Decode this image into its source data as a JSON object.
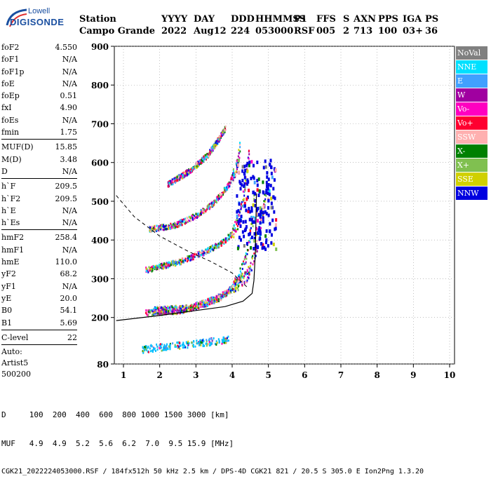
{
  "logo": {
    "line1": "Lowell",
    "line2": "DIGISONDE"
  },
  "header": {
    "row1": [
      "Station",
      "YYYY",
      "DAY",
      "DDD",
      "HHMMSS",
      "P1",
      "FFS",
      "S",
      "AXN",
      "PPS",
      "IGA",
      "PS"
    ],
    "row2": [
      "Campo Grande",
      "2022",
      "Aug12",
      "224",
      "053000",
      "RSF",
      "005",
      "2",
      "713",
      "100",
      "03+",
      "36"
    ]
  },
  "params": {
    "group1": [
      [
        "foF2",
        "4.550"
      ],
      [
        "foF1",
        "N/A"
      ],
      [
        "foF1p",
        "N/A"
      ],
      [
        "foE",
        "N/A"
      ],
      [
        "foEp",
        "0.51"
      ],
      [
        "fxI",
        "4.90"
      ],
      [
        "foEs",
        "N/A"
      ],
      [
        "fmin",
        "1.75"
      ]
    ],
    "group2": [
      [
        "MUF(D)",
        "15.85"
      ],
      [
        "M(D)",
        "3.48"
      ],
      [
        "D",
        "N/A"
      ]
    ],
    "group3": [
      [
        "h`F",
        "209.5"
      ],
      [
        "h`F2",
        "209.5"
      ],
      [
        "h`E",
        "N/A"
      ],
      [
        "h`Es",
        "N/A"
      ]
    ],
    "group4": [
      [
        "hmF2",
        "258.4"
      ],
      [
        "hmF1",
        "N/A"
      ],
      [
        "hmE",
        "110.0"
      ],
      [
        "yF2",
        "68.2"
      ],
      [
        "yF1",
        "N/A"
      ],
      [
        "yE",
        "20.0"
      ],
      [
        "B0",
        "54.1"
      ],
      [
        "B1",
        "5.69"
      ]
    ],
    "group5": [
      [
        "C-level",
        "22"
      ]
    ],
    "auto": [
      "Auto:",
      "Artist5",
      "500200"
    ]
  },
  "legend": [
    {
      "label": "NoVal",
      "color": "#808080"
    },
    {
      "label": "NNE",
      "color": "#00e0ff"
    },
    {
      "label": "E",
      "color": "#40a0ff"
    },
    {
      "label": "W",
      "color": "#a000a0"
    },
    {
      "label": "Vo-",
      "color": "#ff00c0"
    },
    {
      "label": "Vo+",
      "color": "#ff0030"
    },
    {
      "label": "SSW",
      "color": "#ffb0b0"
    },
    {
      "label": "X-",
      "color": "#008000"
    },
    {
      "label": "X+",
      "color": "#80c050"
    },
    {
      "label": "SSE",
      "color": "#d0d000"
    },
    {
      "label": "NNW",
      "color": "#0000e0"
    }
  ],
  "footer": {
    "line1": "D     100  200  400  600  800 1000 1500 3000 [km]",
    "line2": "MUF   4.9  4.9  5.2  5.6  6.2  7.0  9.5 15.9 [MHz]",
    "line3": "CGK21_2022224053000.RSF / 184fx512h 50 kHz 2.5 km / DPS-4D CGK21 821 / 20.5 S 305.0 E Ion2Png 1.3.20"
  },
  "chart_data": {
    "type": "scatter",
    "xlim": [
      0.75,
      10
    ],
    "ylim": [
      80,
      900
    ],
    "xticks": [
      1,
      2,
      3,
      4,
      5,
      6,
      7,
      8,
      9,
      10
    ],
    "yticks": [
      80,
      200,
      300,
      400,
      500,
      600,
      700,
      800,
      900
    ],
    "grid": true,
    "legend_position": "right",
    "traces": [
      {
        "name": "E-trace",
        "x_range": [
          1.5,
          3.9
        ],
        "height": [
          120,
          145
        ]
      },
      {
        "name": "F2 O-trace",
        "points": [
          [
            1.6,
            215
          ],
          [
            2.5,
            218
          ],
          [
            3.2,
            235
          ],
          [
            3.7,
            255
          ],
          [
            4.1,
            290
          ],
          [
            4.35,
            350
          ],
          [
            4.45,
            400
          ],
          [
            4.55,
            450
          ],
          [
            4.6,
            520
          ]
        ]
      },
      {
        "name": "F2 X-trace",
        "points": [
          [
            1.8,
            222
          ],
          [
            2.8,
            228
          ],
          [
            3.5,
            250
          ],
          [
            4.0,
            275
          ],
          [
            4.4,
            310
          ],
          [
            4.6,
            360
          ],
          [
            4.75,
            420
          ],
          [
            4.85,
            480
          ],
          [
            4.95,
            560
          ]
        ]
      },
      {
        "name": "F2 2-hop O-trace",
        "points": [
          [
            1.6,
            325
          ],
          [
            2.5,
            345
          ],
          [
            3.2,
            370
          ],
          [
            3.7,
            395
          ],
          [
            4.0,
            420
          ],
          [
            4.2,
            460
          ],
          [
            4.3,
            520
          ],
          [
            4.4,
            580
          ],
          [
            4.45,
            640
          ]
        ]
      },
      {
        "name": "F2 3-hop O-trace",
        "points": [
          [
            1.7,
            430
          ],
          [
            2.4,
            440
          ],
          [
            3.0,
            465
          ],
          [
            3.5,
            500
          ],
          [
            3.9,
            545
          ],
          [
            4.1,
            590
          ],
          [
            4.2,
            640
          ]
        ]
      },
      {
        "name": "F2 4-hop O-trace",
        "points": [
          [
            2.2,
            545
          ],
          [
            2.8,
            580
          ],
          [
            3.3,
            620
          ],
          [
            3.6,
            660
          ],
          [
            3.8,
            690
          ]
        ]
      }
    ],
    "profile_solid": [
      [
        0.8,
        192
      ],
      [
        2.0,
        205
      ],
      [
        3.0,
        218
      ],
      [
        3.8,
        228
      ],
      [
        4.3,
        242
      ],
      [
        4.55,
        262
      ],
      [
        4.6,
        295
      ],
      [
        4.62,
        330
      ],
      [
        4.64,
        370
      ],
      [
        4.65,
        420
      ],
      [
        4.66,
        470
      ],
      [
        4.67,
        520
      ]
    ],
    "profile_dashed": [
      [
        0.8,
        515
      ],
      [
        1.3,
        460
      ],
      [
        2.0,
        410
      ],
      [
        2.8,
        370
      ],
      [
        3.4,
        345
      ],
      [
        4.0,
        315
      ],
      [
        4.45,
        275
      ]
    ]
  }
}
